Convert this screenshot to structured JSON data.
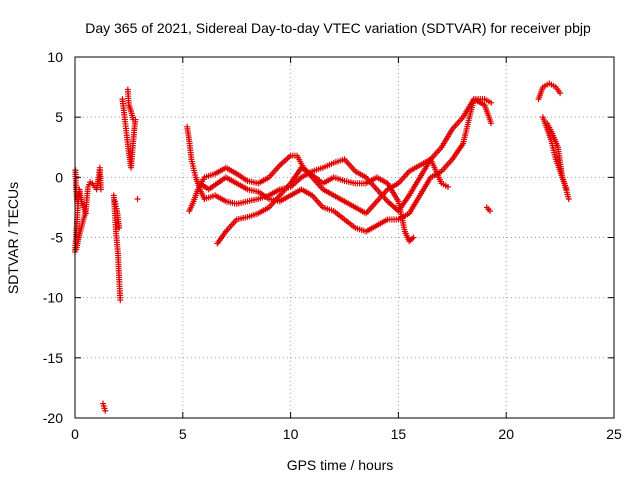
{
  "chart_data": {
    "type": "scatter",
    "title": "Day 365 of 2021, Sidereal Day-to-day VTEC variation (SDTVAR) for receiver pbjp",
    "xlabel": "GPS time / hours",
    "ylabel": "SDTVAR / TECUs",
    "xlim": [
      0,
      25
    ],
    "ylim": [
      -20,
      10
    ],
    "xticks": [
      0,
      5,
      10,
      15,
      20,
      25
    ],
    "yticks": [
      -20,
      -15,
      -10,
      -5,
      0,
      5,
      10
    ],
    "xtick_labels": [
      "0",
      "5",
      "10",
      "15",
      "20",
      "25"
    ],
    "ytick_labels": [
      "-20",
      "-15",
      "-10",
      "-5",
      "0",
      "5",
      "10"
    ],
    "grid": true,
    "marker": "+",
    "color": "#e00000",
    "tracks": [
      [
        [
          0,
          -6.2
        ],
        [
          0.1,
          -3.5
        ],
        [
          0.15,
          -2.0
        ],
        [
          0.2,
          -1.0
        ],
        [
          0.3,
          -2.0
        ],
        [
          0.4,
          -2.5
        ],
        [
          0.5,
          -3.0
        ]
      ],
      [
        [
          0.02,
          0.6
        ],
        [
          0.05,
          -1.0
        ],
        [
          0.1,
          -2.0
        ],
        [
          0.15,
          -1.5
        ]
      ],
      [
        [
          0.05,
          -6.0
        ],
        [
          0.2,
          -4.8
        ],
        [
          0.35,
          -3.8
        ],
        [
          0.5,
          -2.8
        ],
        [
          0.6,
          -0.8
        ],
        [
          0.7,
          -0.4
        ],
        [
          0.8,
          -0.5
        ],
        [
          1.0,
          -1.0
        ],
        [
          1.1,
          0.0
        ],
        [
          1.15,
          0.8
        ],
        [
          1.2,
          -1.0
        ]
      ],
      [
        [
          1.3,
          -18.8
        ],
        [
          1.4,
          -19.4
        ]
      ],
      [
        [
          1.8,
          -1.5
        ],
        [
          1.85,
          -3.0
        ],
        [
          1.9,
          -4.5
        ],
        [
          2.0,
          -6.5
        ],
        [
          2.05,
          -8.5
        ],
        [
          2.1,
          -10.2
        ]
      ],
      [
        [
          1.85,
          -2.0
        ],
        [
          1.95,
          -2.8
        ],
        [
          2.05,
          -4.2
        ]
      ],
      [
        [
          2.2,
          6.5
        ],
        [
          2.3,
          5.0
        ],
        [
          2.4,
          3.5
        ],
        [
          2.5,
          2.0
        ],
        [
          2.6,
          0.8
        ],
        [
          2.7,
          3.0
        ],
        [
          2.8,
          4.8
        ]
      ],
      [
        [
          2.45,
          7.3
        ],
        [
          2.5,
          6.0
        ],
        [
          2.6,
          5.5
        ],
        [
          2.7,
          4.8
        ]
      ],
      [
        [
          2.9,
          -1.8
        ]
      ],
      [
        [
          5.2,
          4.2
        ],
        [
          5.3,
          3.0
        ],
        [
          5.4,
          1.5
        ],
        [
          5.6,
          0.0
        ],
        [
          5.8,
          -1.0
        ],
        [
          6.0,
          -1.8
        ],
        [
          6.5,
          -1.5
        ],
        [
          7.0,
          -2.0
        ],
        [
          7.5,
          -2.2
        ],
        [
          8.0,
          -2.0
        ],
        [
          8.5,
          -1.8
        ],
        [
          9.0,
          -1.5
        ],
        [
          9.5,
          -1.0
        ],
        [
          10.0,
          -0.8
        ],
        [
          10.5,
          0.0
        ],
        [
          11.0,
          0.5
        ],
        [
          11.5,
          0.8
        ],
        [
          12.0,
          1.2
        ],
        [
          12.5,
          1.5
        ],
        [
          13.0,
          0.5
        ],
        [
          13.5,
          0.0
        ],
        [
          14.0,
          -1.0
        ],
        [
          14.5,
          -2.0
        ],
        [
          15.0,
          -2.8
        ],
        [
          15.5,
          -1.5
        ],
        [
          16.0,
          0.0
        ],
        [
          16.5,
          1.5
        ],
        [
          17.0,
          2.5
        ],
        [
          17.5,
          4.0
        ],
        [
          18.0,
          5.0
        ],
        [
          18.5,
          6.5
        ],
        [
          19.0,
          6.0
        ],
        [
          19.2,
          5.0
        ],
        [
          19.3,
          4.5
        ]
      ],
      [
        [
          5.3,
          -2.8
        ],
        [
          5.5,
          -2.0
        ],
        [
          5.7,
          -1.0
        ],
        [
          6.0,
          0.0
        ],
        [
          6.5,
          0.3
        ],
        [
          7.0,
          0.8
        ],
        [
          7.5,
          0.3
        ],
        [
          8.0,
          -0.3
        ],
        [
          8.5,
          -0.5
        ],
        [
          9.0,
          0.0
        ],
        [
          9.5,
          1.0
        ],
        [
          10.0,
          1.8
        ],
        [
          10.3,
          1.8
        ],
        [
          10.6,
          0.8
        ],
        [
          11.0,
          0.0
        ],
        [
          11.5,
          -1.0
        ],
        [
          12.0,
          -1.5
        ],
        [
          12.5,
          -2.0
        ],
        [
          13.0,
          -2.5
        ],
        [
          13.5,
          -3.0
        ],
        [
          14.0,
          -2.0
        ],
        [
          14.5,
          -1.0
        ],
        [
          15.0,
          -0.5
        ],
        [
          15.5,
          0.5
        ],
        [
          16.0,
          1.0
        ],
        [
          16.5,
          1.5
        ],
        [
          17.0,
          -0.5
        ],
        [
          17.3,
          -0.8
        ]
      ],
      [
        [
          5.8,
          -0.5
        ],
        [
          6.2,
          -1.0
        ],
        [
          6.6,
          -0.5
        ],
        [
          7.0,
          0.0
        ],
        [
          7.5,
          -0.5
        ],
        [
          8.0,
          -1.0
        ],
        [
          8.5,
          -1.2
        ],
        [
          9.0,
          -1.8
        ],
        [
          9.5,
          -2.0
        ],
        [
          10.0,
          -1.5
        ],
        [
          10.5,
          -1.0
        ],
        [
          11.0,
          -1.5
        ],
        [
          11.5,
          -2.5
        ],
        [
          12.0,
          -2.8
        ],
        [
          12.5,
          -3.5
        ],
        [
          13.0,
          -4.2
        ],
        [
          13.5,
          -4.5
        ],
        [
          14.0,
          -4.0
        ],
        [
          14.5,
          -3.5
        ],
        [
          15.0,
          -3.5
        ],
        [
          15.5,
          -3.0
        ],
        [
          16.0,
          -1.5
        ],
        [
          16.5,
          0.0
        ],
        [
          17.0,
          0.5
        ],
        [
          17.5,
          1.5
        ],
        [
          18.0,
          2.8
        ],
        [
          18.5,
          6.5
        ],
        [
          19.0,
          6.5
        ],
        [
          19.3,
          6.2
        ]
      ],
      [
        [
          6.6,
          -5.5
        ],
        [
          7.0,
          -4.5
        ],
        [
          7.5,
          -3.5
        ],
        [
          8.0,
          -3.3
        ],
        [
          8.5,
          -3.0
        ],
        [
          9.0,
          -2.5
        ],
        [
          9.5,
          -1.5
        ],
        [
          10.0,
          -0.5
        ],
        [
          10.5,
          0.8
        ],
        [
          11.0,
          0.2
        ],
        [
          11.5,
          -0.5
        ],
        [
          12.0,
          0.0
        ],
        [
          12.5,
          -0.3
        ],
        [
          13.0,
          -0.5
        ],
        [
          13.5,
          -0.5
        ],
        [
          14.0,
          0.0
        ],
        [
          14.5,
          -0.5
        ],
        [
          15.0,
          -2.0
        ],
        [
          15.3,
          -4.5
        ],
        [
          15.5,
          -5.3
        ],
        [
          15.7,
          -5.0
        ]
      ],
      [
        [
          19.1,
          -2.5
        ],
        [
          19.25,
          -2.8
        ]
      ],
      [
        [
          21.5,
          6.5
        ],
        [
          21.7,
          7.5
        ],
        [
          22.0,
          7.8
        ],
        [
          22.3,
          7.5
        ],
        [
          22.5,
          7.0
        ]
      ],
      [
        [
          21.7,
          5.0
        ],
        [
          21.9,
          4.0
        ],
        [
          22.1,
          3.0
        ],
        [
          22.3,
          1.5
        ],
        [
          22.5,
          0.5
        ],
        [
          22.7,
          -0.5
        ],
        [
          22.9,
          -1.8
        ]
      ],
      [
        [
          21.9,
          4.5
        ],
        [
          22.1,
          3.8
        ],
        [
          22.4,
          2.5
        ],
        [
          22.6,
          0.0
        ],
        [
          22.8,
          -1.0
        ]
      ]
    ]
  }
}
